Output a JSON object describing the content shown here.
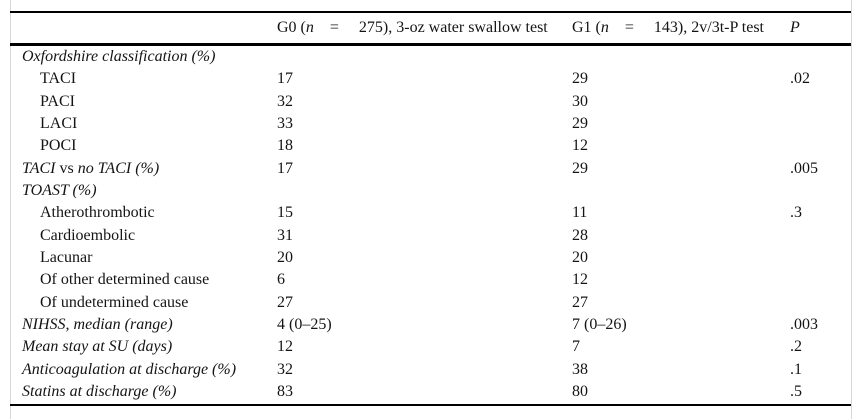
{
  "header": {
    "label_spacer": "",
    "g0_parts": [
      {
        "t": "G0 (",
        "i": false
      },
      {
        "t": "n",
        "i": true
      },
      {
        "t": "    =     275), 3-oz water swallow test",
        "i": false
      }
    ],
    "g1_parts": [
      {
        "t": "G1 (",
        "i": false
      },
      {
        "t": "n",
        "i": true
      },
      {
        "t": "    =     143), 2v/3t-P test",
        "i": false
      }
    ],
    "p_label": "P"
  },
  "rows": [
    {
      "indent": false,
      "label_parts": [
        {
          "t": "Oxfordshire classification (%)",
          "i": true
        }
      ],
      "g0": "",
      "g1": "",
      "p": ""
    },
    {
      "indent": true,
      "label_parts": [
        {
          "t": "TACI",
          "i": false
        }
      ],
      "g0": "17",
      "g1": "29",
      "p": ".02"
    },
    {
      "indent": true,
      "label_parts": [
        {
          "t": "PACI",
          "i": false
        }
      ],
      "g0": "32",
      "g1": "30",
      "p": ""
    },
    {
      "indent": true,
      "label_parts": [
        {
          "t": "LACI",
          "i": false
        }
      ],
      "g0": "33",
      "g1": "29",
      "p": ""
    },
    {
      "indent": true,
      "label_parts": [
        {
          "t": "POCI",
          "i": false
        }
      ],
      "g0": "18",
      "g1": "12",
      "p": ""
    },
    {
      "indent": false,
      "label_parts": [
        {
          "t": "TACI ",
          "i": true
        },
        {
          "t": "vs ",
          "i": false
        },
        {
          "t": "no TACI (%)",
          "i": true
        }
      ],
      "g0": "17",
      "g1": "29",
      "p": ".005"
    },
    {
      "indent": false,
      "label_parts": [
        {
          "t": "TOAST (%)",
          "i": true
        }
      ],
      "g0": "",
      "g1": "",
      "p": ""
    },
    {
      "indent": true,
      "label_parts": [
        {
          "t": "Atherothrombotic",
          "i": false
        }
      ],
      "g0": "15",
      "g1": "11",
      "p": ".3"
    },
    {
      "indent": true,
      "label_parts": [
        {
          "t": "Cardioembolic",
          "i": false
        }
      ],
      "g0": "31",
      "g1": "28",
      "p": ""
    },
    {
      "indent": true,
      "label_parts": [
        {
          "t": "Lacunar",
          "i": false
        }
      ],
      "g0": "20",
      "g1": "20",
      "p": ""
    },
    {
      "indent": true,
      "label_parts": [
        {
          "t": "Of other determined cause",
          "i": false
        }
      ],
      "g0": "6",
      "g1": "12",
      "p": ""
    },
    {
      "indent": true,
      "label_parts": [
        {
          "t": "Of undetermined cause",
          "i": false
        }
      ],
      "g0": "27",
      "g1": "27",
      "p": ""
    },
    {
      "indent": false,
      "label_parts": [
        {
          "t": "NIHSS, median (range)",
          "i": true
        }
      ],
      "g0": "4 (0–25)",
      "g1": "7 (0–26)",
      "p": ".003"
    },
    {
      "indent": false,
      "label_parts": [
        {
          "t": "Mean stay at SU (days)",
          "i": true
        }
      ],
      "g0": "12",
      "g1": "7",
      "p": ".2"
    },
    {
      "indent": false,
      "label_parts": [
        {
          "t": "Anticoagulation at discharge (%)",
          "i": true
        }
      ],
      "g0": "32",
      "g1": "38",
      "p": ".1"
    },
    {
      "indent": false,
      "label_parts": [
        {
          "t": "Statins at discharge (%)",
          "i": true
        }
      ],
      "g0": "83",
      "g1": "80",
      "p": ".5"
    }
  ],
  "colors": {
    "rule": "#000000",
    "frame_line": "#d6d6d6",
    "text": "#141414",
    "background": "#ffffff"
  }
}
